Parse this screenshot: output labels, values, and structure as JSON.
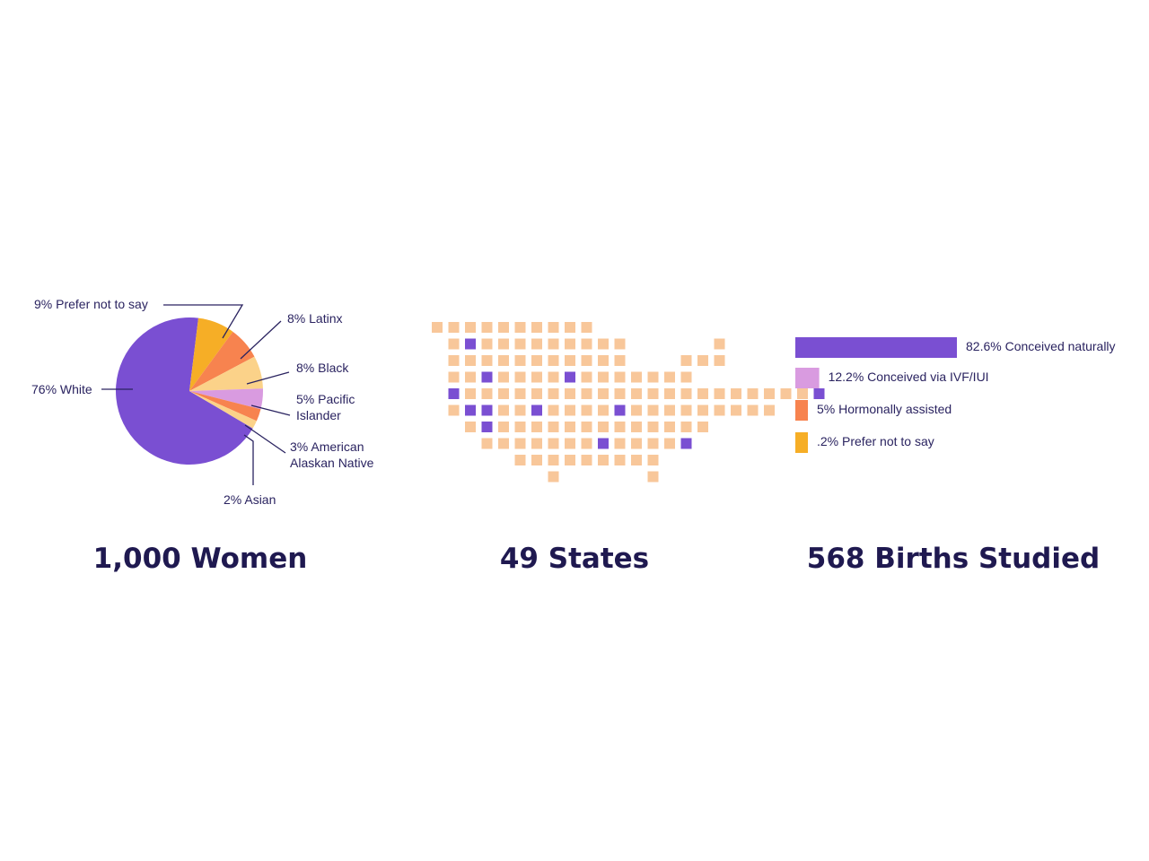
{
  "colors": {
    "purple": "#7a4fd2",
    "orange": "#f6ae26",
    "coral": "#f7834f",
    "peach": "#fbd289",
    "lilac": "#d99be0",
    "tile": "#f8c79a",
    "text": "#2a2360"
  },
  "pie_section": {
    "title": "1,000 Women"
  },
  "map_section": {
    "title": "49 States"
  },
  "bar_section": {
    "title": "568 Births Studied"
  },
  "chart_data": [
    {
      "type": "pie",
      "title": "1,000 Women",
      "slices": [
        {
          "label": "76% White",
          "value": 76,
          "color": "#7a4fd2"
        },
        {
          "label": "9% Prefer not to say",
          "value": 9,
          "color": "#f6ae26"
        },
        {
          "label": "8% Latinx",
          "value": 8,
          "color": "#f7834f"
        },
        {
          "label": "8% Black",
          "value": 8,
          "color": "#fbd289"
        },
        {
          "label": "5% Pacific Islander",
          "value": 5,
          "color": "#d99be0"
        },
        {
          "label": "3% American Alaskan Native",
          "value": 3,
          "color": "#f7834f"
        },
        {
          "label": "2% Asian",
          "value": 2,
          "color": "#fbd289"
        }
      ]
    },
    {
      "type": "heatmap",
      "title": "49 States",
      "rows": [
        "..........",
        ".#.........",
        "...........",
        "..#....#.......",
        "#.....................#",
        ".##..#....#.........",
        ".#.............",
        ".......#....#",
        "........."
      ]
    },
    {
      "type": "bar",
      "title": "568 Births Studied",
      "categories": [
        "82.6% Conceived naturally",
        "12.2% Conceived via IVF/IUI",
        "5% Hormonally assisted",
        ".2% Prefer not to say"
      ],
      "values": [
        82.6,
        12.2,
        5,
        0.2
      ],
      "colors": [
        "#7a4fd2",
        "#d99be0",
        "#f7834f",
        "#f6ae26"
      ]
    }
  ]
}
